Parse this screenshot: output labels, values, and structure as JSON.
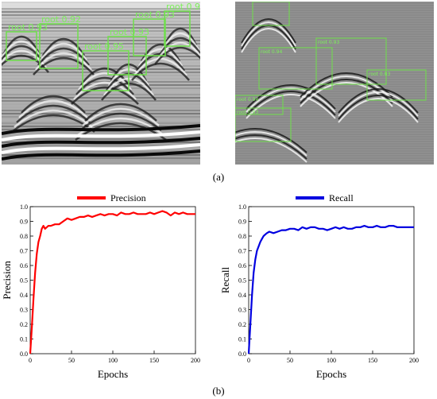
{
  "captions": {
    "a": "(a)",
    "b": "(b)"
  },
  "gpr_left": {
    "detections": [
      {
        "label": "root 0.93"
      },
      {
        "label": "root 0.92"
      },
      {
        "label": "root 0.95"
      },
      {
        "label": "root 0.93"
      },
      {
        "label": "root 0.93"
      },
      {
        "label": "root 0.92"
      }
    ]
  },
  "gpr_right": {
    "detections": [
      {
        "label": ""
      },
      {
        "label": "root 0.94"
      },
      {
        "label": "root 0.93"
      },
      {
        "label": "root 0.83"
      },
      {
        "label": "root 0.94"
      },
      {
        "label": "root 0.93"
      }
    ]
  },
  "chart_data": [
    {
      "type": "line",
      "title": "",
      "xlabel": "Epochs",
      "ylabel": "Precision",
      "xlim": [
        0,
        200
      ],
      "ylim": [
        0.0,
        1.0
      ],
      "xticks": [
        0,
        50,
        100,
        150,
        200
      ],
      "yticks": [
        0.0,
        0.1,
        0.2,
        0.3,
        0.4,
        0.5,
        0.6,
        0.7,
        0.8,
        0.9,
        1.0
      ],
      "grid": false,
      "legend": "top-center",
      "series": [
        {
          "name": "Precision",
          "color": "#ff0000",
          "x": [
            0,
            2,
            4,
            6,
            8,
            10,
            12,
            14,
            16,
            18,
            20,
            22,
            25,
            30,
            35,
            40,
            45,
            50,
            55,
            60,
            65,
            70,
            75,
            80,
            85,
            90,
            95,
            100,
            105,
            110,
            115,
            120,
            125,
            130,
            135,
            140,
            145,
            150,
            155,
            160,
            165,
            170,
            175,
            180,
            185,
            190,
            195,
            200
          ],
          "y": [
            0.0,
            0.18,
            0.38,
            0.55,
            0.68,
            0.76,
            0.8,
            0.85,
            0.87,
            0.85,
            0.86,
            0.87,
            0.87,
            0.88,
            0.88,
            0.9,
            0.92,
            0.91,
            0.92,
            0.93,
            0.93,
            0.94,
            0.93,
            0.94,
            0.95,
            0.94,
            0.95,
            0.95,
            0.94,
            0.96,
            0.95,
            0.95,
            0.96,
            0.95,
            0.95,
            0.95,
            0.96,
            0.95,
            0.96,
            0.97,
            0.96,
            0.94,
            0.96,
            0.95,
            0.96,
            0.95,
            0.95,
            0.95
          ]
        }
      ]
    },
    {
      "type": "line",
      "title": "",
      "xlabel": "Epochs",
      "ylabel": "Recall",
      "xlim": [
        0,
        200
      ],
      "ylim": [
        0.0,
        1.0
      ],
      "xticks": [
        0,
        50,
        100,
        150,
        200
      ],
      "yticks": [
        0.0,
        0.1,
        0.2,
        0.3,
        0.4,
        0.5,
        0.6,
        0.7,
        0.8,
        0.9,
        1.0
      ],
      "grid": false,
      "legend": "top-center",
      "series": [
        {
          "name": "Recall",
          "color": "#0000e0",
          "x": [
            0,
            2,
            4,
            6,
            8,
            10,
            12,
            14,
            16,
            18,
            20,
            22,
            25,
            30,
            35,
            40,
            45,
            50,
            55,
            60,
            65,
            70,
            75,
            80,
            85,
            90,
            95,
            100,
            105,
            110,
            115,
            120,
            125,
            130,
            135,
            140,
            145,
            150,
            155,
            160,
            165,
            170,
            175,
            180,
            185,
            190,
            195,
            200
          ],
          "y": [
            0.0,
            0.2,
            0.4,
            0.55,
            0.64,
            0.7,
            0.73,
            0.76,
            0.78,
            0.8,
            0.81,
            0.82,
            0.83,
            0.82,
            0.83,
            0.84,
            0.84,
            0.85,
            0.85,
            0.84,
            0.86,
            0.85,
            0.86,
            0.86,
            0.85,
            0.85,
            0.84,
            0.85,
            0.86,
            0.85,
            0.86,
            0.85,
            0.85,
            0.86,
            0.86,
            0.87,
            0.86,
            0.86,
            0.87,
            0.86,
            0.86,
            0.87,
            0.87,
            0.86,
            0.86,
            0.86,
            0.86,
            0.86
          ]
        }
      ]
    }
  ]
}
